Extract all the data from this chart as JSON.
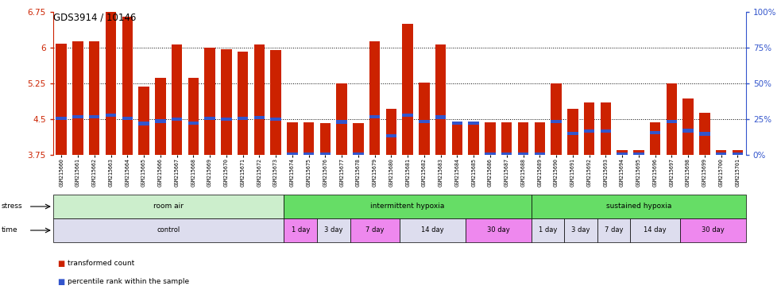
{
  "title": "GDS3914 / 10146",
  "samples": [
    "GSM215660",
    "GSM215661",
    "GSM215662",
    "GSM215663",
    "GSM215664",
    "GSM215665",
    "GSM215666",
    "GSM215667",
    "GSM215668",
    "GSM215669",
    "GSM215670",
    "GSM215671",
    "GSM215672",
    "GSM215673",
    "GSM215674",
    "GSM215675",
    "GSM215676",
    "GSM215677",
    "GSM215678",
    "GSM215679",
    "GSM215680",
    "GSM215681",
    "GSM215682",
    "GSM215683",
    "GSM215684",
    "GSM215685",
    "GSM215686",
    "GSM215687",
    "GSM215688",
    "GSM215689",
    "GSM215690",
    "GSM215691",
    "GSM215692",
    "GSM215693",
    "GSM215694",
    "GSM215695",
    "GSM215696",
    "GSM215697",
    "GSM215698",
    "GSM215699",
    "GSM215700",
    "GSM215701"
  ],
  "bar_heights": [
    6.08,
    6.14,
    6.14,
    6.75,
    6.65,
    5.19,
    5.37,
    6.07,
    5.37,
    6.0,
    5.97,
    5.91,
    6.07,
    5.95,
    4.43,
    4.44,
    4.42,
    5.25,
    4.42,
    6.14,
    4.72,
    6.5,
    5.27,
    6.06,
    4.44,
    4.44,
    4.43,
    4.43,
    4.44,
    4.43,
    5.25,
    4.72,
    4.85,
    4.85,
    3.85,
    3.85,
    4.43,
    5.25,
    4.94,
    4.63,
    3.85,
    3.85
  ],
  "percentile_values": [
    4.52,
    4.55,
    4.55,
    4.58,
    4.52,
    4.41,
    4.46,
    4.5,
    4.42,
    4.52,
    4.5,
    4.52,
    4.53,
    4.5,
    3.76,
    3.76,
    3.76,
    4.44,
    3.76,
    4.55,
    4.15,
    4.58,
    4.45,
    4.54,
    4.42,
    4.42,
    3.76,
    3.76,
    3.76,
    3.76,
    4.45,
    4.2,
    4.25,
    4.25,
    3.76,
    3.76,
    4.22,
    4.45,
    4.26,
    4.19,
    3.76,
    3.76
  ],
  "ymin": 3.75,
  "ymax": 6.75,
  "bar_color": "#cc2200",
  "blue_color": "#3355cc",
  "stress_groups": [
    {
      "label": "room air",
      "start": 0,
      "end": 14,
      "color": "#cceecc"
    },
    {
      "label": "intermittent hypoxia",
      "start": 14,
      "end": 29,
      "color": "#66dd66"
    },
    {
      "label": "sustained hypoxia",
      "start": 29,
      "end": 42,
      "color": "#66dd66"
    }
  ],
  "time_groups": [
    {
      "label": "control",
      "start": 0,
      "end": 14,
      "color": "#ddddee"
    },
    {
      "label": "1 day",
      "start": 14,
      "end": 16,
      "color": "#ee88ee"
    },
    {
      "label": "3 day",
      "start": 16,
      "end": 18,
      "color": "#ddddee"
    },
    {
      "label": "7 day",
      "start": 18,
      "end": 21,
      "color": "#ee88ee"
    },
    {
      "label": "14 day",
      "start": 21,
      "end": 25,
      "color": "#ddddee"
    },
    {
      "label": "30 day",
      "start": 25,
      "end": 29,
      "color": "#ee88ee"
    },
    {
      "label": "1 day",
      "start": 29,
      "end": 31,
      "color": "#ddddee"
    },
    {
      "label": "3 day",
      "start": 31,
      "end": 33,
      "color": "#ddddee"
    },
    {
      "label": "7 day",
      "start": 33,
      "end": 35,
      "color": "#ddddee"
    },
    {
      "label": "14 day",
      "start": 35,
      "end": 38,
      "color": "#ddddee"
    },
    {
      "label": "30 day",
      "start": 38,
      "end": 42,
      "color": "#ee88ee"
    }
  ]
}
